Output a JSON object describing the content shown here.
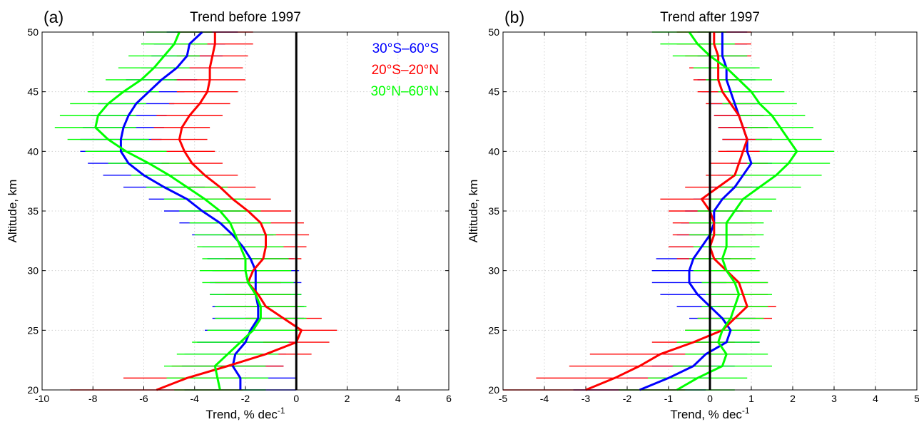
{
  "colors": {
    "south": "#0000ff",
    "tropics": "#ff0000",
    "north": "#00ff00",
    "zero_line": "#000000"
  },
  "chart_data": [
    {
      "type": "line",
      "panel_label": "(a)",
      "title": "Trend before 1997",
      "xlabel": "Trend, % dec",
      "xlabel_superscript": "-1",
      "ylabel": "Altitude, km",
      "xlim": [
        -10,
        6
      ],
      "ylim": [
        20,
        50
      ],
      "xticks": [
        -10,
        -8,
        -6,
        -4,
        -2,
        0,
        2,
        4,
        6
      ],
      "yticks": [
        20,
        25,
        30,
        35,
        40,
        45,
        50
      ],
      "grid": true,
      "legend_position": "top-right",
      "zero_line": 0,
      "altitude": [
        20,
        21,
        22,
        23,
        24,
        25,
        26,
        27,
        28,
        29,
        30,
        31,
        32,
        33,
        34,
        35,
        36,
        37,
        38,
        39,
        40,
        41,
        42,
        43,
        44,
        45,
        46,
        47,
        48,
        49,
        50
      ],
      "series": [
        {
          "name": "30°S–60°S",
          "color_key": "south",
          "values": [
            -2.2,
            -2.2,
            -2.5,
            -2.4,
            -2.0,
            -1.8,
            -1.5,
            -1.5,
            -1.6,
            -1.6,
            -1.6,
            -1.8,
            -2.1,
            -2.5,
            -3.0,
            -3.7,
            -4.3,
            -5.2,
            -6.0,
            -6.6,
            -6.9,
            -6.9,
            -6.8,
            -6.6,
            -6.3,
            -5.8,
            -5.3,
            -4.7,
            -4.3,
            -4.2,
            -3.7
          ],
          "err": [
            2.2,
            2.2,
            2.0,
            2.0,
            1.9,
            1.8,
            1.8,
            1.8,
            1.8,
            1.8,
            1.7,
            1.7,
            1.6,
            1.6,
            1.6,
            1.5,
            1.5,
            1.6,
            1.6,
            1.6,
            1.6,
            1.6,
            1.6,
            1.5,
            1.5,
            1.4,
            1.4,
            1.4,
            1.4,
            1.4,
            1.4
          ]
        },
        {
          "name": "20°S–20°N",
          "color_key": "tropics",
          "values": [
            -5.5,
            -4.3,
            -2.7,
            -1.2,
            0.0,
            0.2,
            -0.5,
            -1.2,
            -1.5,
            -1.9,
            -1.7,
            -1.3,
            -1.2,
            -1.2,
            -1.4,
            -1.9,
            -2.5,
            -3.0,
            -3.6,
            -4.1,
            -4.4,
            -4.6,
            -4.5,
            -4.2,
            -3.8,
            -3.5,
            -3.4,
            -3.4,
            -3.3,
            -3.2,
            -3.2
          ],
          "err": [
            3.4,
            2.5,
            2.2,
            1.8,
            1.3,
            1.4,
            1.5,
            1.4,
            1.3,
            1.3,
            1.5,
            1.5,
            1.6,
            1.7,
            1.7,
            1.7,
            1.5,
            1.4,
            1.3,
            1.2,
            1.2,
            1.1,
            1.1,
            1.3,
            1.2,
            1.2,
            1.4,
            1.3,
            1.4,
            1.5,
            1.5
          ]
        },
        {
          "name": "30°N–60°N",
          "color_key": "north",
          "values": [
            -3.0,
            -3.1,
            -3.2,
            -2.7,
            -2.2,
            -1.7,
            -1.4,
            -1.4,
            -1.6,
            -1.9,
            -2.0,
            -2.0,
            -2.2,
            -2.4,
            -2.6,
            -3.0,
            -3.6,
            -4.3,
            -5.0,
            -5.8,
            -6.7,
            -7.4,
            -7.9,
            -7.8,
            -7.4,
            -6.8,
            -6.1,
            -5.6,
            -5.2,
            -4.8,
            -4.6
          ],
          "err": [
            1.8,
            2.0,
            2.0,
            2.0,
            1.9,
            1.8,
            1.8,
            1.8,
            1.8,
            1.8,
            1.8,
            1.7,
            1.7,
            1.6,
            1.6,
            1.6,
            1.6,
            1.6,
            1.5,
            1.6,
            1.6,
            1.6,
            1.6,
            1.5,
            1.5,
            1.4,
            1.4,
            1.4,
            1.4,
            1.3,
            1.3
          ]
        }
      ]
    },
    {
      "type": "line",
      "panel_label": "(b)",
      "title": "Trend after 1997",
      "xlabel": "Trend, % dec",
      "xlabel_superscript": "-1",
      "ylabel": "Altitude, km",
      "xlim": [
        -5,
        5
      ],
      "ylim": [
        20,
        50
      ],
      "xticks": [
        -5,
        -4,
        -3,
        -2,
        -1,
        0,
        1,
        2,
        3,
        4,
        5
      ],
      "yticks": [
        20,
        25,
        30,
        35,
        40,
        45,
        50
      ],
      "grid": true,
      "zero_line": 0,
      "altitude": [
        20,
        21,
        22,
        23,
        24,
        25,
        26,
        27,
        28,
        29,
        30,
        31,
        32,
        33,
        34,
        35,
        36,
        37,
        38,
        39,
        40,
        41,
        42,
        43,
        44,
        45,
        46,
        47,
        48,
        49,
        50
      ],
      "series": [
        {
          "name": "30°S–60°S",
          "color_key": "south",
          "values": [
            -1.7,
            -1.0,
            -0.4,
            -0.1,
            0.4,
            0.5,
            0.3,
            0.0,
            -0.3,
            -0.5,
            -0.5,
            -0.4,
            -0.2,
            0.0,
            0.1,
            0.1,
            0.3,
            0.6,
            0.8,
            1.0,
            0.9,
            0.9,
            0.8,
            0.7,
            0.6,
            0.5,
            0.4,
            0.4,
            0.3,
            0.3,
            0.3
          ],
          "err": [
            1.6,
            1.0,
            1.0,
            1.0,
            0.8,
            0.7,
            0.8,
            0.8,
            0.9,
            0.9,
            0.9,
            0.9,
            0.8,
            0.8,
            0.8,
            0.7,
            0.7,
            0.6,
            0.6,
            0.5,
            0.5,
            0.6,
            0.6,
            0.6,
            0.6,
            0.7,
            0.7,
            0.7,
            0.6,
            0.6,
            0.6
          ]
        },
        {
          "name": "20°S–20°N",
          "color_key": "tropics",
          "values": [
            -3.0,
            -2.3,
            -1.7,
            -1.2,
            -0.4,
            0.3,
            0.6,
            0.9,
            0.8,
            0.7,
            0.4,
            0.1,
            0.0,
            0.1,
            0.1,
            0.0,
            -0.2,
            0.2,
            0.6,
            0.7,
            0.8,
            0.9,
            0.8,
            0.7,
            0.5,
            0.3,
            0.2,
            0.2,
            0.2,
            0.1,
            0.1
          ],
          "err": [
            2.4,
            1.9,
            1.7,
            1.7,
            1.0,
            0.9,
            0.9,
            0.7,
            0.6,
            0.7,
            0.8,
            0.9,
            1.0,
            1.0,
            1.0,
            1.0,
            1.0,
            0.8,
            0.7,
            0.7,
            0.6,
            0.6,
            0.6,
            0.6,
            0.6,
            0.6,
            0.6,
            0.7,
            0.8,
            0.9,
            0.9
          ]
        },
        {
          "name": "30°N–60°N",
          "color_key": "north",
          "values": [
            -0.8,
            -0.3,
            0.3,
            0.4,
            0.2,
            0.3,
            0.5,
            0.6,
            0.7,
            0.6,
            0.4,
            0.3,
            0.4,
            0.4,
            0.4,
            0.6,
            0.8,
            1.2,
            1.6,
            1.9,
            2.1,
            1.9,
            1.7,
            1.5,
            1.2,
            1.0,
            0.7,
            0.4,
            0.0,
            -0.3,
            -0.5
          ],
          "err": [
            1.4,
            1.2,
            1.2,
            1.0,
            1.0,
            0.9,
            0.8,
            0.8,
            0.8,
            0.8,
            0.8,
            0.8,
            0.8,
            0.9,
            0.9,
            0.9,
            0.8,
            1.0,
            1.1,
            1.0,
            0.9,
            0.8,
            0.8,
            0.8,
            0.9,
            0.8,
            0.8,
            0.8,
            0.9,
            0.9,
            0.9
          ]
        }
      ]
    }
  ]
}
